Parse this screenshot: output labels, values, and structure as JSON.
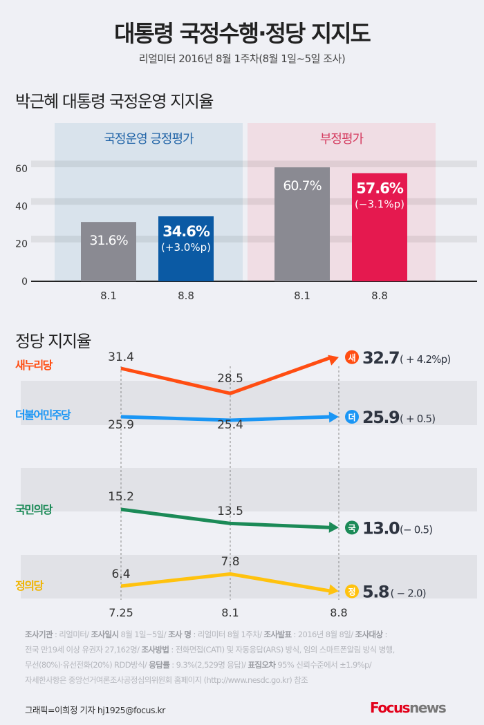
{
  "title": "대통령 국정수행·정당 지지도",
  "subtitle": "리얼미터 2016년 8월 1주차(8월 1일~5일 조사)",
  "colors": {
    "positive_panel": "#d9e3ec",
    "negative_panel": "#f0dde4",
    "gray_bar": "#8a8a92",
    "blue_bar": "#0b5aa4",
    "red_bar": "#e5194f",
    "saenuri": "#ff4d12",
    "minjoo": "#1a96f5",
    "people": "#1b8a57",
    "justice": "#ffc20e"
  },
  "chart_data": [
    {
      "type": "bar",
      "title": "박근혜 대통령 국정운영 지지율",
      "ylim": [
        0,
        65
      ],
      "yticks": [
        0,
        20,
        40,
        60
      ],
      "grid": true,
      "groups": [
        {
          "label": "국정운영 긍정평가",
          "categories": [
            "8.1",
            "8.8"
          ],
          "values": [
            31.6,
            34.6
          ],
          "labels": [
            "31.6%",
            "34.6%"
          ],
          "change": "(+3.0%p)"
        },
        {
          "label": "부정평가",
          "categories": [
            "8.1",
            "8.8"
          ],
          "values": [
            60.7,
            57.6
          ],
          "labels": [
            "60.7%",
            "57.6%"
          ],
          "change": "(−3.1%p)"
        }
      ]
    },
    {
      "type": "line",
      "title": "정당 지지율",
      "x": [
        "7.25",
        "8.1",
        "8.8"
      ],
      "series": [
        {
          "name": "새누리당",
          "badge": "새",
          "values": [
            31.4,
            28.5,
            32.7
          ],
          "final": "32.7",
          "change": "( + 4.2%p)"
        },
        {
          "name": "더불어민주당",
          "badge": "더",
          "values": [
            25.9,
            25.4,
            25.9
          ],
          "final": "25.9",
          "change": "( + 0.5)"
        },
        {
          "name": "국민의당",
          "badge": "국",
          "values": [
            15.2,
            13.5,
            13.0
          ],
          "final": "13.0",
          "change": "(− 0.5)"
        },
        {
          "name": "정의당",
          "badge": "정",
          "values": [
            6.4,
            7.8,
            5.8
          ],
          "final": "5.8",
          "change": "( − 2.0)"
        }
      ]
    }
  ],
  "footnote": [
    [
      [
        "b",
        "조사기관"
      ],
      [
        "t",
        " : 리얼미터/ "
      ],
      [
        "b",
        "조사일시"
      ],
      [
        "t",
        " 8월 1일~5일/ "
      ],
      [
        "b",
        "조사 명"
      ],
      [
        "t",
        " : 리얼미터 8월 1주차/ "
      ],
      [
        "b",
        "조사발표"
      ],
      [
        "t",
        " : 2016년 8월 8일/ "
      ],
      [
        "b",
        "조사대상"
      ],
      [
        "t",
        " :"
      ]
    ],
    [
      [
        "t",
        "전국 만19세 이상 유권자 27,162명/ "
      ],
      [
        "b",
        "조사방법"
      ],
      [
        "t",
        " : 전화면접(CATI) 및 자동응답(ARS) 방식, 임의 스마트폰알림 방식 병행,"
      ]
    ],
    [
      [
        "t",
        "무선(80%)·유선전화(20%) RDD방식/ "
      ],
      [
        "b",
        "응답률"
      ],
      [
        "t",
        " : 9.3%(2,529명 응답)/ "
      ],
      [
        "b",
        "표집오차"
      ],
      [
        "t",
        " 95% 신뢰수준에서 ±1.9%p/"
      ]
    ],
    [
      [
        "t",
        "자세한사항은 중앙선거여론조사공정심의위원회 홈페이지 (http://www.nesdc.go.kr) 참조"
      ]
    ]
  ],
  "credit": "그래픽=이희정 기자 hj1925@focus.kr",
  "logo": {
    "brand": "Focus",
    "suffix": "news"
  }
}
